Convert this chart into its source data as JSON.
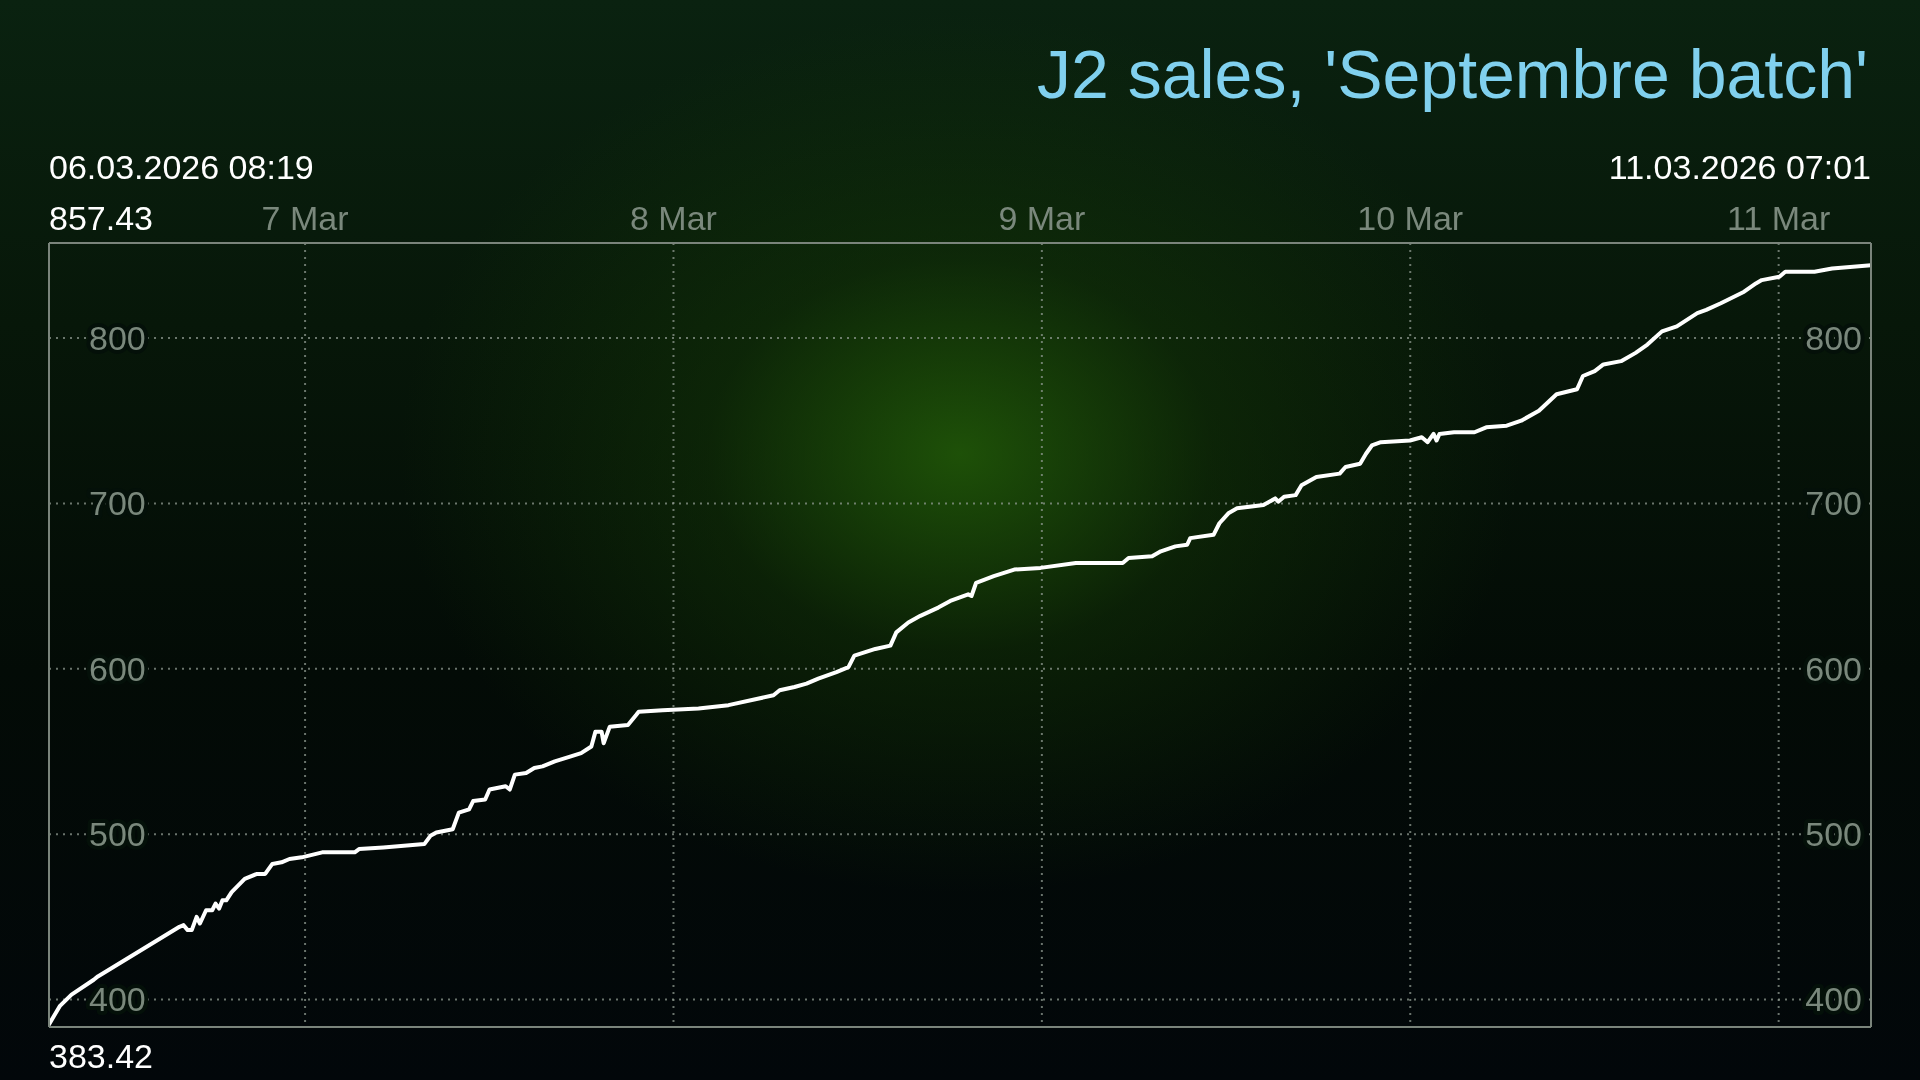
{
  "chart_data": {
    "type": "line",
    "title": "J2 sales, 'Septembre batch'",
    "x": [
      "2026-03-06T08:19",
      "2026-03-06T09:01",
      "2026-03-06T09:47",
      "2026-03-06T11:14",
      "2026-03-06T11:30",
      "2026-03-06T16:49",
      "2026-03-06T17:05",
      "2026-03-06T17:21",
      "2026-03-06T17:37",
      "2026-03-06T17:56",
      "2026-03-06T18:09",
      "2026-03-06T18:33",
      "2026-03-06T18:57",
      "2026-03-06T19:10",
      "2026-03-06T19:24",
      "2026-03-06T19:37",
      "2026-03-06T19:52",
      "2026-03-06T20:13",
      "2026-03-06T21:04",
      "2026-03-06T21:52",
      "2026-03-06T22:24",
      "2026-03-06T22:52",
      "2026-03-06T23:28",
      "2026-03-06T23:59",
      "2026-03-07T00:47",
      "2026-03-07T02:07",
      "2026-03-07T04:14",
      "2026-03-07T04:31",
      "2026-03-07T06:06",
      "2026-03-07T08:46",
      "2026-03-07T09:10",
      "2026-03-07T09:33",
      "2026-03-07T10:37",
      "2026-03-07T11:01",
      "2026-03-07T11:41",
      "2026-03-07T11:57",
      "2026-03-07T12:44",
      "2026-03-07T13:01",
      "2026-03-07T14:04",
      "2026-03-07T14:20",
      "2026-03-07T14:40",
      "2026-03-07T15:24",
      "2026-03-07T15:56",
      "2026-03-07T16:28",
      "2026-03-07T17:16",
      "2026-03-07T18:19",
      "2026-03-07T18:59",
      "2026-03-07T19:39",
      "2026-03-07T19:55",
      "2026-03-07T20:19",
      "2026-03-07T20:27",
      "2026-03-07T20:51",
      "2026-03-07T22:02",
      "2026-03-07T22:34",
      "2026-03-07T22:44",
      "2026-03-08T00:18",
      "2026-03-08T02:38",
      "2026-03-08T04:35",
      "2026-03-08T07:31",
      "2026-03-08T07:55",
      "2026-03-08T08:53",
      "2026-03-08T09:40",
      "2026-03-08T10:26",
      "2026-03-08T11:37",
      "2026-03-08T12:24",
      "2026-03-08T12:47",
      "2026-03-08T14:09",
      "2026-03-08T15:08",
      "2026-03-08T15:31",
      "2026-03-08T16:18",
      "2026-03-08T17:05",
      "2026-03-08T18:15",
      "2026-03-08T19:02",
      "2026-03-08T20:12",
      "2026-03-08T20:25",
      "2026-03-08T20:43",
      "2026-03-08T21:52",
      "2026-03-08T23:12",
      "2026-03-09T00:55",
      "2026-03-09T03:13",
      "2026-03-09T06:16",
      "2026-03-09T06:39",
      "2026-03-09T08:11",
      "2026-03-09T08:45",
      "2026-03-09T09:42",
      "2026-03-09T10:28",
      "2026-03-09T10:40",
      "2026-03-09T12:11",
      "2026-03-09T12:34",
      "2026-03-09T13:09",
      "2026-03-09T13:43",
      "2026-03-09T15:26",
      "2026-03-09T16:12",
      "2026-03-09T16:24",
      "2026-03-09T16:47",
      "2026-03-09T17:32",
      "2026-03-09T17:55",
      "2026-03-09T18:53",
      "2026-03-09T20:24",
      "2026-03-09T20:47",
      "2026-03-09T21:44",
      "2026-03-09T22:07",
      "2026-03-09T22:30",
      "2026-03-09T23:05",
      "2026-03-10T00:59",
      "2026-03-10T01:45",
      "2026-03-10T02:08",
      "2026-03-10T02:31",
      "2026-03-10T02:43",
      "2026-03-10T02:54",
      "2026-03-10T03:51",
      "2026-03-10T05:11",
      "2026-03-10T05:57",
      "2026-03-10T07:17",
      "2026-03-10T08:14",
      "2026-03-10T09:23",
      "2026-03-10T10:32",
      "2026-03-10T11:52",
      "2026-03-10T12:15",
      "2026-03-10T13:01",
      "2026-03-10T13:35",
      "2026-03-10T14:44",
      "2026-03-10T15:41",
      "2026-03-10T16:27",
      "2026-03-10T17:24",
      "2026-03-10T18:22",
      "2026-03-10T19:42",
      "2026-03-10T20:17",
      "2026-03-10T21:14",
      "2026-03-10T22:45",
      "2026-03-10T23:31",
      "2026-03-10T23:54",
      "2026-03-11T01:03",
      "2026-03-11T01:26",
      "2026-03-11T03:20",
      "2026-03-11T04:29",
      "2026-03-11T07:01"
    ],
    "series": [
      {
        "color": "#ffffff",
        "values": [
          385,
          396,
          403,
          412,
          414,
          444,
          445,
          442,
          442,
          450,
          446,
          454,
          454,
          458,
          455,
          460,
          460,
          465,
          473,
          476,
          476,
          482,
          483,
          485,
          486,
          489,
          489,
          491,
          492,
          494,
          499,
          501,
          503,
          513,
          515,
          520,
          521,
          527,
          529,
          527,
          536,
          537,
          540,
          541,
          544,
          547,
          549,
          553,
          562,
          562,
          555,
          565,
          566,
          572,
          574,
          575,
          576,
          578,
          584,
          587,
          589,
          591,
          594,
          598,
          601,
          608,
          612,
          614,
          622,
          628,
          632,
          637,
          641,
          645,
          644,
          652,
          656,
          660,
          661,
          664,
          664,
          667,
          668,
          671,
          674,
          675,
          679,
          681,
          688,
          694,
          697,
          699,
          703,
          701,
          704,
          705,
          711,
          716,
          718,
          722,
          724,
          730,
          735,
          737,
          738,
          740,
          737,
          742,
          738,
          742,
          743,
          743,
          746,
          747,
          750,
          756,
          766,
          769,
          777,
          780,
          784,
          786,
          791,
          796,
          804,
          807,
          815,
          817,
          821,
          828,
          833,
          835,
          837,
          840,
          840,
          842,
          844
        ]
      }
    ],
    "xlim": [
      "2026-03-06T08:19",
      "2026-03-11T07:01"
    ],
    "xticks": [
      {
        "value": "2026-03-07T01:00",
        "label": "7 Mar"
      },
      {
        "value": "2026-03-08T01:00",
        "label": "8 Mar"
      },
      {
        "value": "2026-03-09T01:00",
        "label": "9 Mar"
      },
      {
        "value": "2026-03-10T01:00",
        "label": "10 Mar"
      },
      {
        "value": "2026-03-11T01:00",
        "label": "11 Mar"
      }
    ],
    "ylim": [
      383.42,
      857.43
    ],
    "yticks": [
      400,
      500,
      600,
      700,
      800
    ],
    "y2lim": [
      383.42,
      857.43
    ],
    "y2ticks": [
      400,
      500,
      600,
      700,
      800
    ],
    "grid": true,
    "annotations": [
      "06.03.2026 08:19",
      "11.03.2026 07:01",
      "857.43",
      "383.42"
    ]
  }
}
